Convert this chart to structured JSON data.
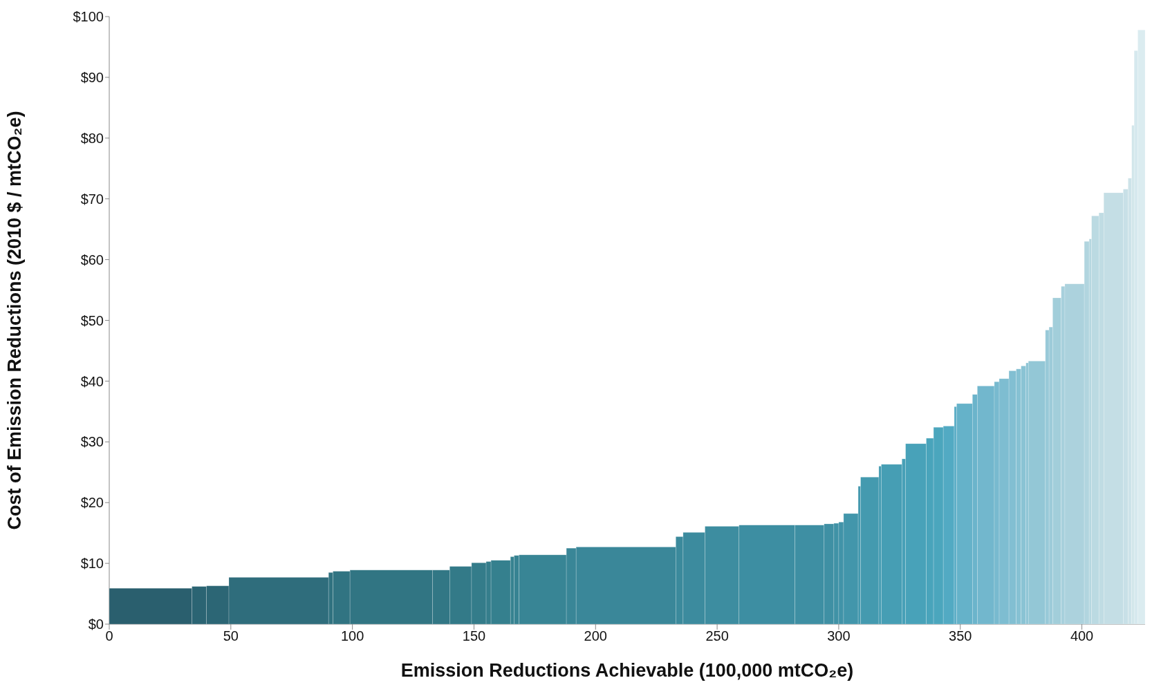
{
  "chart_data": {
    "type": "histogram",
    "xlabel": "Emission Reductions Achievable (100,000 mtCO₂e)",
    "ylabel": "Cost of Emission Reductions (2010 $ / mtCO₂e)",
    "bins": [
      0,
      34,
      40,
      49.2,
      90.2,
      92,
      99,
      133,
      140,
      149,
      155,
      157,
      165,
      166.5,
      168.5,
      188,
      192,
      233,
      236,
      245,
      259,
      282,
      294,
      298,
      300,
      302,
      308,
      309,
      316.5,
      317.5,
      326,
      327.5,
      336,
      339,
      343,
      347.5,
      348.5,
      355,
      357,
      364,
      366,
      370,
      373,
      375,
      377,
      378,
      385,
      386.5,
      388,
      391.5,
      393,
      401,
      403,
      404,
      407,
      409,
      417,
      419,
      420.5,
      421.5,
      423,
      426
    ],
    "values": [
      5.9,
      6.2,
      6.3,
      7.7,
      8.5,
      8.7,
      8.9,
      8.9,
      9.5,
      10.1,
      10.3,
      10.5,
      11.1,
      11.3,
      11.4,
      12.5,
      12.7,
      14.4,
      15.1,
      16.1,
      16.3,
      16.3,
      16.5,
      16.6,
      16.8,
      18.2,
      22.7,
      24.2,
      26.0,
      26.3,
      27.2,
      29.7,
      30.6,
      32.4,
      32.6,
      35.8,
      36.3,
      37.8,
      39.2,
      39.9,
      40.4,
      41.7,
      42.0,
      42.5,
      43.0,
      43.3,
      48.4,
      48.9,
      53.7,
      55.6,
      56.0,
      63.0,
      63.4,
      67.2,
      67.7,
      71.0,
      71.6,
      73.4,
      82.1,
      94.4,
      97.8
    ],
    "colors": [
      "#2a5f6e",
      "#2b6473",
      "#2c6675",
      "#2f6d7c",
      "#307280",
      "#317482",
      "#317583",
      "#327785",
      "#337a88",
      "#347c8a",
      "#357e8c",
      "#35808e",
      "#368290",
      "#378392",
      "#388595",
      "#398697",
      "#3a8799",
      "#3b8a9c",
      "#3c8b9e",
      "#3d8da0",
      "#3d8ea2",
      "#3e8fa3",
      "#3f90a4",
      "#4092a6",
      "#4193a8",
      "#4296ab",
      "#4398ae",
      "#449aaf",
      "#459cb2",
      "#469eb4",
      "#47a0b7",
      "#48a2b9",
      "#49a4bb",
      "#4ba6bd",
      "#52aac3",
      "#5eafc7",
      "#65b2c9",
      "#6bb4cb",
      "#72b7cd",
      "#78bacf",
      "#7ebdd1",
      "#82bfd2",
      "#86c1d3",
      "#8ac3d4",
      "#8ec5d5",
      "#93c7d6",
      "#98c9d8",
      "#9dcbd9",
      "#a2ceda",
      "#a7d0dc",
      "#acd2dd",
      "#b1d5df",
      "#b6d7e0",
      "#bbdae2",
      "#c0dce3",
      "#c4dee5",
      "#c8e0e7",
      "#cde3e9",
      "#d2e6eb",
      "#d6e9ee",
      "#dbecf0"
    ],
    "xlim": [
      0,
      426
    ],
    "xticks": [
      0,
      50,
      100,
      150,
      200,
      250,
      300,
      350,
      400
    ],
    "ylim": [
      0,
      100
    ],
    "yticks": [
      {
        "value": 0,
        "label": "$0"
      },
      {
        "value": 10,
        "label": "$10"
      },
      {
        "value": 20,
        "label": "$20"
      },
      {
        "value": 30,
        "label": "$30"
      },
      {
        "value": 40,
        "label": "$40"
      },
      {
        "value": 50,
        "label": "$50"
      },
      {
        "value": 60,
        "label": "$60"
      },
      {
        "value": 70,
        "label": "$70"
      },
      {
        "value": 80,
        "label": "$80"
      },
      {
        "value": 90,
        "label": "$90"
      },
      {
        "value": 100,
        "label": "$100"
      }
    ]
  }
}
